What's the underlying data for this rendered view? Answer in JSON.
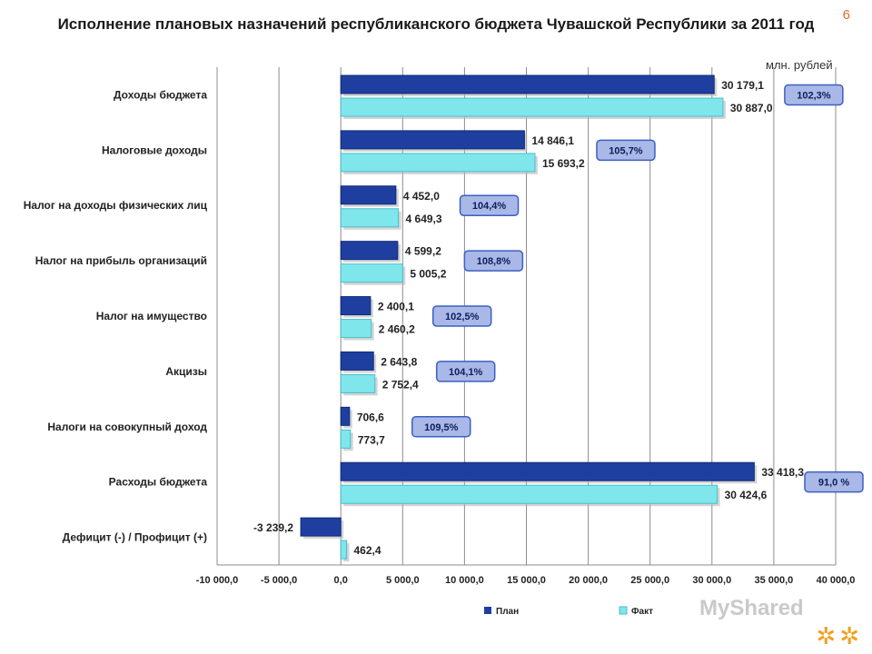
{
  "title": "Исполнение плановых назначений республиканского бюджета Чувашской Республики за 2011 год",
  "slide_number": "6",
  "units": "млн. рублей",
  "watermark": "MyShared",
  "chart_data": {
    "type": "bar",
    "orientation": "horizontal",
    "categories": [
      "Доходы бюджета",
      "Налоговые доходы",
      "Налог на доходы физических лиц",
      "Налог на прибыль организаций",
      "Налог на имущество",
      "Акцизы",
      "Налоги на совокупный доход",
      "Расходы бюджета",
      "Дефицит (-) / Профицит (+)"
    ],
    "series": [
      {
        "name": "План",
        "color": "#1f3fa0",
        "values": [
          30179.1,
          14846.1,
          4452.0,
          4599.2,
          2400.1,
          2643.8,
          706.6,
          33418.3,
          -3239.2
        ],
        "labels": [
          "30 179,1",
          "14 846,1",
          "4 452,0",
          "4 599,2",
          "2 400,1",
          "2 643,8",
          "706,6",
          "33 418,3",
          "-3 239,2"
        ]
      },
      {
        "name": "Факт",
        "color": "#7fe6ec",
        "values": [
          30887.0,
          15693.2,
          4649.3,
          5005.2,
          2460.2,
          2752.4,
          773.7,
          30424.6,
          462.4
        ],
        "labels": [
          "30 887,0",
          "15 693,2",
          "4 649,3",
          "5 005,2",
          "2 460,2",
          "2 752,4",
          "773,7",
          "30 424,6",
          "462,4"
        ]
      }
    ],
    "percent_badges": [
      "102,3%",
      "105,7%",
      "104,4%",
      "108,8%",
      "102,5%",
      "104,1%",
      "109,5%",
      "91,0 %",
      ""
    ],
    "xlim": [
      -10000,
      40000
    ],
    "xticks": [
      -10000,
      -5000,
      0,
      5000,
      10000,
      15000,
      20000,
      25000,
      30000,
      35000,
      40000
    ],
    "xtick_labels": [
      "-10 000,0",
      "-5 000,0",
      "0,0",
      "5 000,0",
      "10 000,0",
      "15 000,0",
      "20 000,0",
      "25 000,0",
      "30 000,0",
      "35 000,0",
      "40 000,0"
    ],
    "grid": true,
    "legend_position": "bottom"
  }
}
